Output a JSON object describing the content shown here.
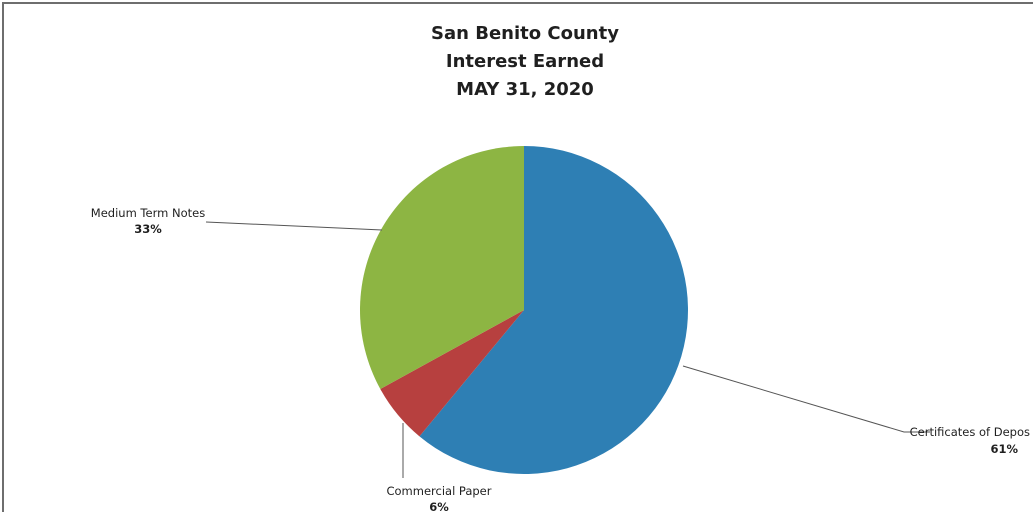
{
  "chart_data": {
    "type": "pie",
    "title": [
      "San Benito County",
      "Interest Earned",
      "MAY 31, 2020"
    ],
    "slices": [
      {
        "label": "Certificates of Depos",
        "pct_label": "61%",
        "value": 61,
        "color": "#2e7fb4"
      },
      {
        "label": "Commercial Paper",
        "pct_label": "6%",
        "value": 6,
        "color": "#b7403f"
      },
      {
        "label": "Medium Term Notes",
        "pct_label": "33%",
        "value": 33,
        "color": "#8db543"
      }
    ],
    "start_angle_deg": 0,
    "direction": "clockwise",
    "legend": "none"
  }
}
